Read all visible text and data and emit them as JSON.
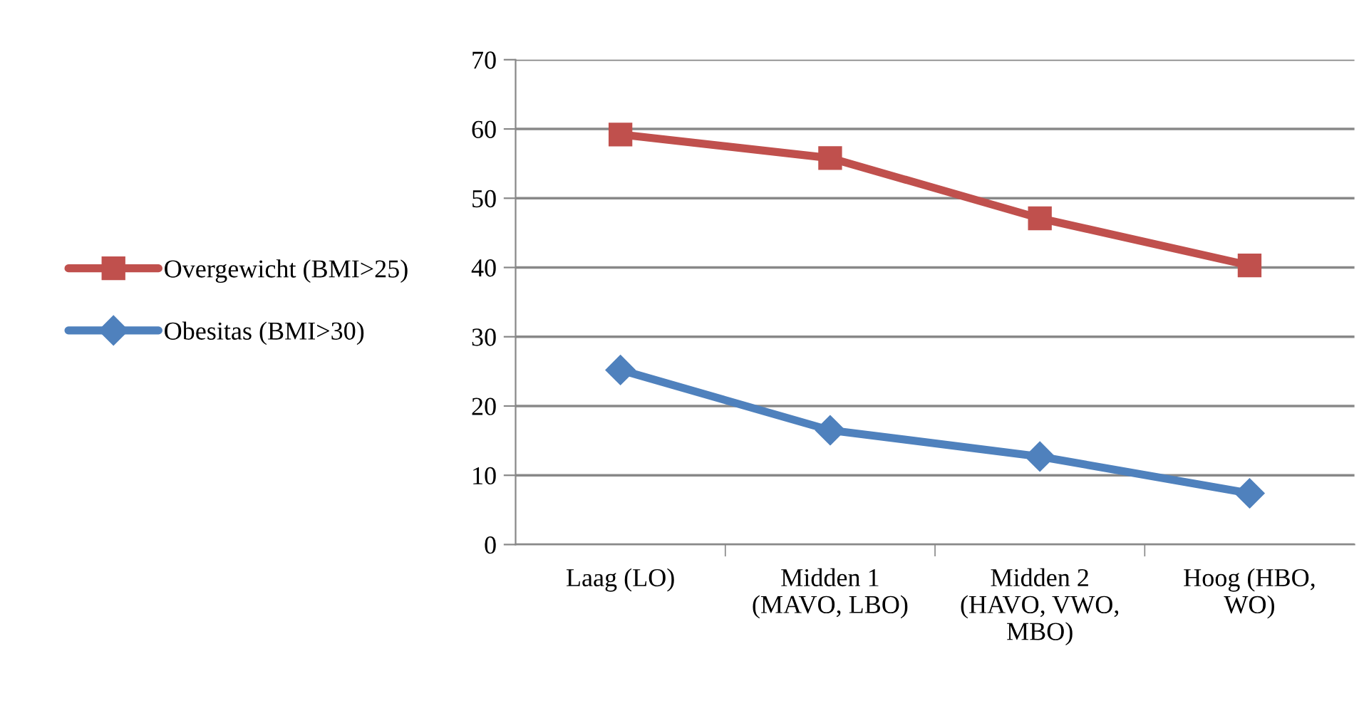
{
  "chart_data": {
    "type": "line",
    "categories": [
      "Laag (LO)",
      "Midden 1 (MAVO, LBO)",
      "Midden 2 (HAVO, VWO, MBO)",
      "Hoog (HBO, WO)"
    ],
    "series": [
      {
        "name": "Overgewicht (BMI>25)",
        "color": "#c0504d",
        "marker": "square",
        "values": [
          59.2,
          55.8,
          47.1,
          40.3
        ]
      },
      {
        "name": "Obesitas (BMI>30)",
        "color": "#4f81bd",
        "marker": "diamond",
        "values": [
          25.2,
          16.5,
          12.7,
          7.4
        ]
      }
    ],
    "ylim": [
      0,
      70
    ],
    "yticks": [
      0,
      10,
      20,
      30,
      40,
      50,
      60,
      70
    ],
    "grid": "y",
    "legend": "left",
    "line_style": "solid"
  }
}
